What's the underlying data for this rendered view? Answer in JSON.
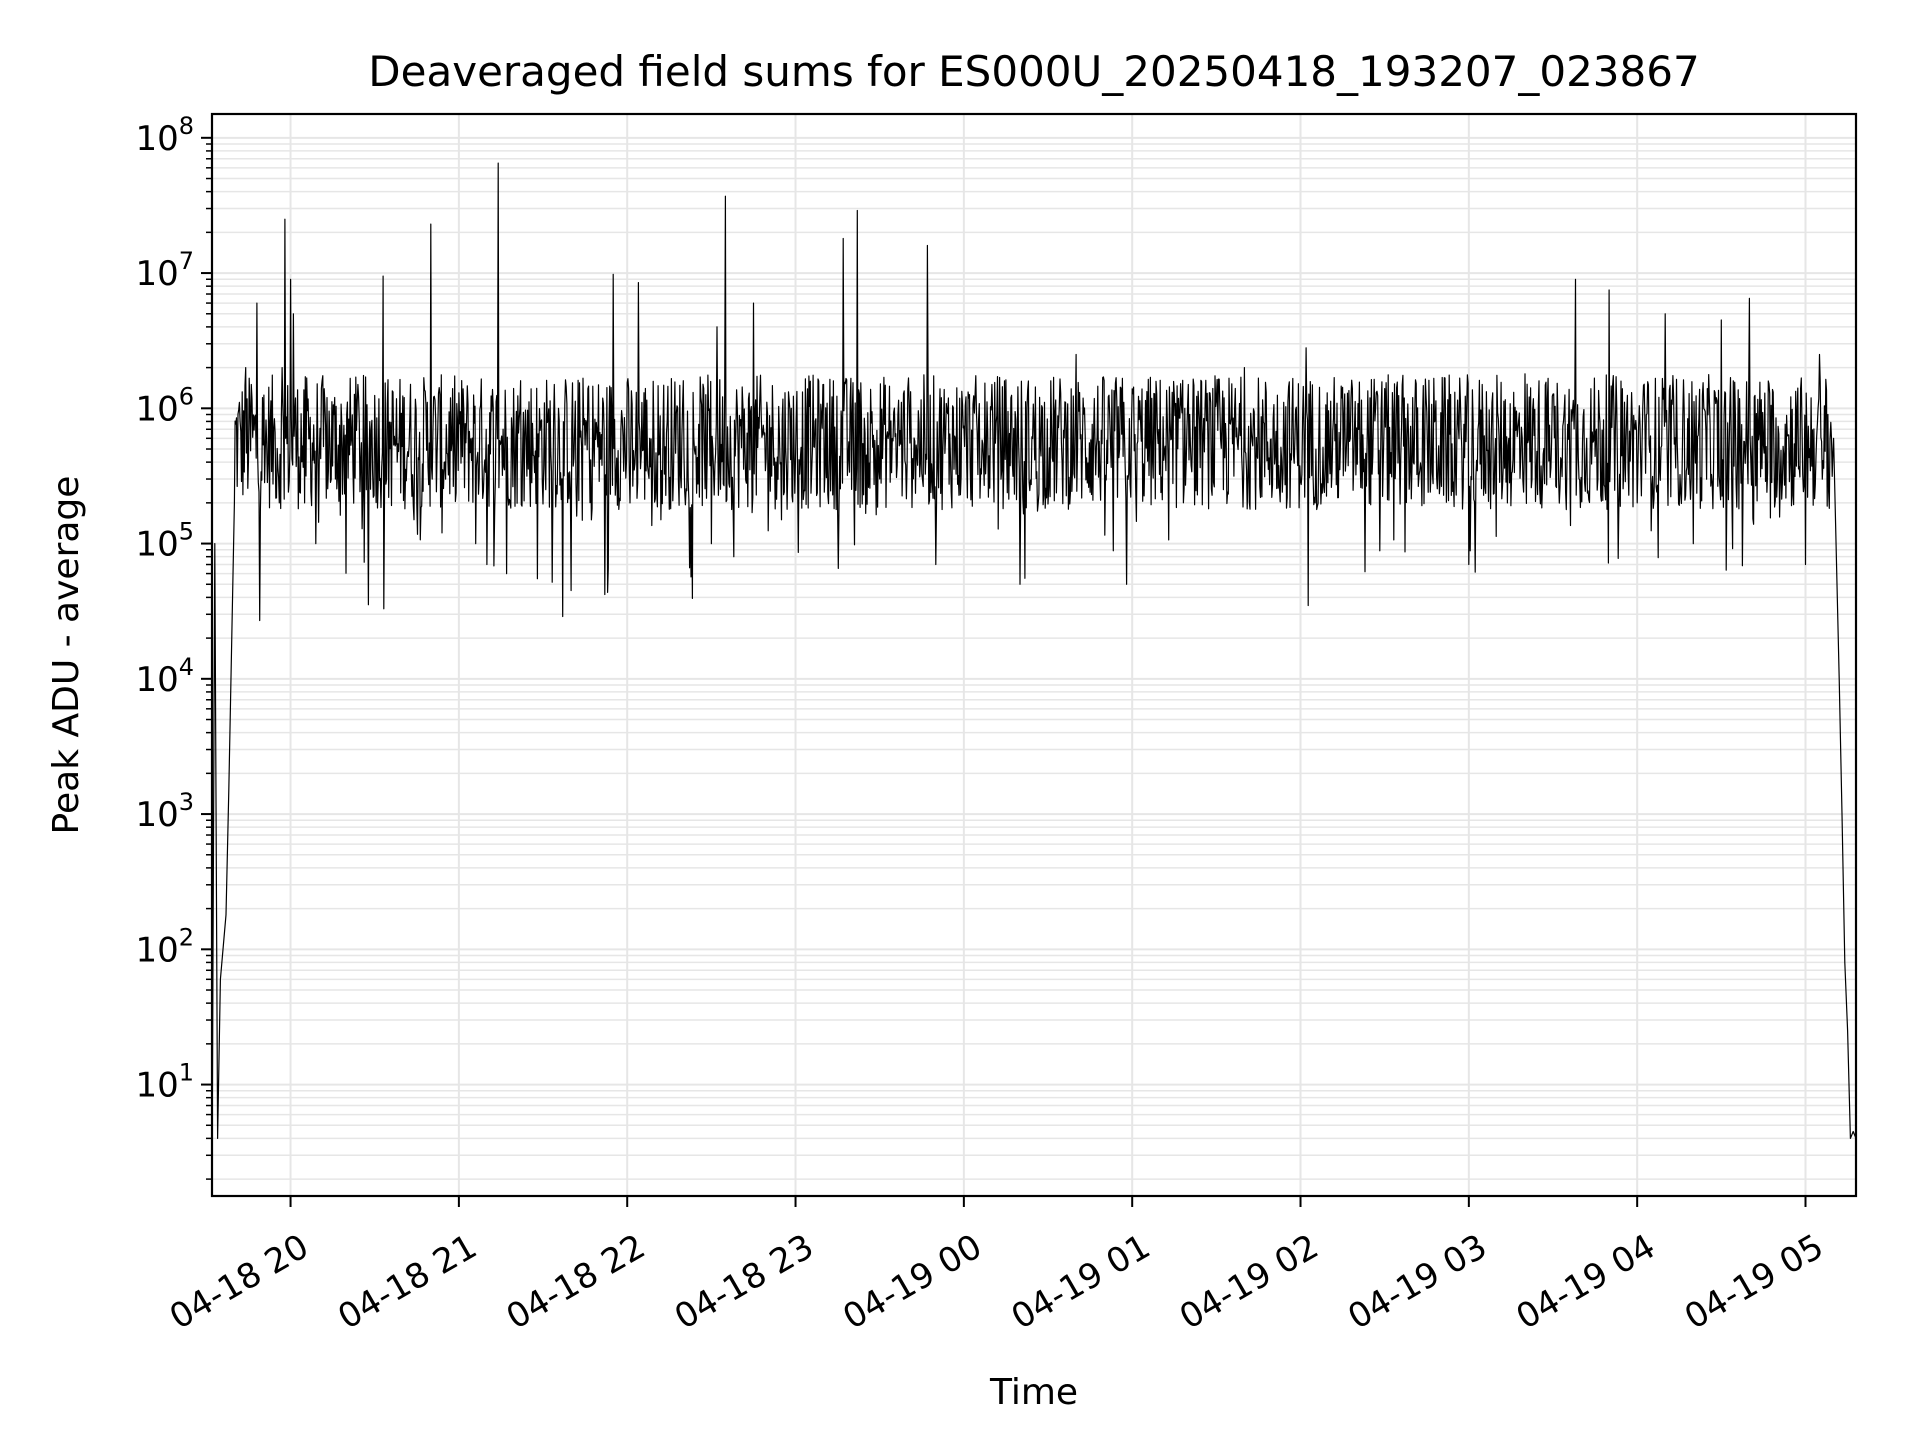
{
  "chart_data": {
    "type": "line",
    "title": "Deaveraged field sums for ES000U_20250418_193207_023867",
    "xlabel": "Time",
    "ylabel": "Peak ADU - average",
    "y_scale": "log",
    "ylim": [
      1.5,
      150000000
    ],
    "xlim": [
      "2025-04-18 19:32",
      "2025-04-19 05:18"
    ],
    "grid": true,
    "line_color": "#000000",
    "grid_color": "#e6e6e6",
    "x_ticks": [
      {
        "t": "2025-04-18 20:00",
        "label": "04-18 20"
      },
      {
        "t": "2025-04-18 21:00",
        "label": "04-18 21"
      },
      {
        "t": "2025-04-18 22:00",
        "label": "04-18 22"
      },
      {
        "t": "2025-04-18 23:00",
        "label": "04-18 23"
      },
      {
        "t": "2025-04-19 00:00",
        "label": "04-19 00"
      },
      {
        "t": "2025-04-19 01:00",
        "label": "04-19 01"
      },
      {
        "t": "2025-04-19 02:00",
        "label": "04-19 02"
      },
      {
        "t": "2025-04-19 03:00",
        "label": "04-19 03"
      },
      {
        "t": "2025-04-19 04:00",
        "label": "04-19 04"
      },
      {
        "t": "2025-04-19 05:00",
        "label": "04-19 05"
      }
    ],
    "y_ticks": [
      {
        "value": 10,
        "base": "10",
        "exp": "1"
      },
      {
        "value": 100,
        "base": "10",
        "exp": "2"
      },
      {
        "value": 1000,
        "base": "10",
        "exp": "3"
      },
      {
        "value": 10000,
        "base": "10",
        "exp": "4"
      },
      {
        "value": 100000,
        "base": "10",
        "exp": "5"
      },
      {
        "value": 1000000,
        "base": "10",
        "exp": "6"
      },
      {
        "value": 10000000,
        "base": "10",
        "exp": "7"
      },
      {
        "value": 100000000,
        "base": "10",
        "exp": "8"
      }
    ],
    "series": [
      {
        "baseline": 1000000,
        "points": [
          [
            "2025-04-18 19:32",
            1.8
          ],
          [
            "2025-04-18 19:33",
            100000
          ],
          [
            "2025-04-18 19:34",
            4
          ],
          [
            "2025-04-18 19:35",
            60
          ],
          [
            "2025-04-18 19:37",
            180
          ],
          [
            "2025-04-18 19:38",
            1500
          ],
          [
            "2025-04-18 19:40",
            200000
          ],
          [
            "2025-04-18 19:42",
            800000
          ],
          [
            "2025-04-18 19:44",
            2000000
          ],
          [
            "2025-04-18 19:46",
            1500000
          ],
          [
            "2025-04-18 19:48",
            6000000
          ],
          [
            "2025-04-18 19:49",
            27000
          ],
          [
            "2025-04-18 19:50",
            1200000
          ],
          [
            "2025-04-18 19:52",
            400000
          ],
          [
            "2025-04-18 19:54",
            700000
          ],
          [
            "2025-04-18 19:56",
            200000
          ],
          [
            "2025-04-18 19:57",
            2000000
          ],
          [
            "2025-04-18 19:58",
            25000000
          ],
          [
            "2025-04-18 20:00",
            9000000
          ],
          [
            "2025-04-18 20:01",
            5000000
          ],
          [
            "2025-04-18 20:05",
            200000
          ],
          [
            "2025-04-18 20:09",
            100000
          ],
          [
            "2025-04-18 20:13",
            1200000
          ],
          [
            "2025-04-18 20:16",
            300000
          ],
          [
            "2025-04-18 20:20",
            900000
          ],
          [
            "2025-04-18 20:24",
            1500000
          ],
          [
            "2025-04-18 20:27",
            250000
          ],
          [
            "2025-04-18 20:33",
            9500000
          ],
          [
            "2025-04-18 20:38",
            400000
          ],
          [
            "2025-04-18 20:44",
            150000
          ],
          [
            "2025-04-18 20:50",
            23000000
          ],
          [
            "2025-04-18 20:54",
            120000
          ],
          [
            "2025-04-18 21:00",
            1300000
          ],
          [
            "2025-04-18 21:06",
            100000
          ],
          [
            "2025-04-18 21:10",
            70000
          ],
          [
            "2025-04-18 21:14",
            65000000
          ],
          [
            "2025-04-18 21:17",
            60000
          ],
          [
            "2025-04-18 21:22",
            1600000
          ],
          [
            "2025-04-18 21:28",
            55000
          ],
          [
            "2025-04-18 21:34",
            1500000
          ],
          [
            "2025-04-18 21:40",
            45000
          ],
          [
            "2025-04-18 21:46",
            1400000
          ],
          [
            "2025-04-18 21:52",
            42000
          ],
          [
            "2025-04-18 21:55",
            9800000
          ],
          [
            "2025-04-18 22:01",
            200000
          ],
          [
            "2025-04-18 22:04",
            8500000
          ],
          [
            "2025-04-18 22:12",
            150000
          ],
          [
            "2025-04-18 22:20",
            1600000
          ],
          [
            "2025-04-18 22:30",
            100000
          ],
          [
            "2025-04-18 22:32",
            4000000
          ],
          [
            "2025-04-18 22:35",
            37000000
          ],
          [
            "2025-04-18 22:38",
            80000
          ],
          [
            "2025-04-18 22:45",
            6000000
          ],
          [
            "2025-04-18 22:55",
            150000
          ],
          [
            "2025-04-18 23:10",
            1500000
          ],
          [
            "2025-04-18 23:17",
            18000000
          ],
          [
            "2025-04-18 23:22",
            29000000
          ],
          [
            "2025-04-18 23:30",
            300000
          ],
          [
            "2025-04-18 23:40",
            1400000
          ],
          [
            "2025-04-18 23:47",
            16000000
          ],
          [
            "2025-04-18 23:50",
            70000
          ],
          [
            "2025-04-19 00:10",
            1500000
          ],
          [
            "2025-04-19 00:20",
            50000
          ],
          [
            "2025-04-19 00:40",
            2500000
          ],
          [
            "2025-04-19 00:58",
            50000
          ],
          [
            "2025-04-19 01:20",
            1500000
          ],
          [
            "2025-04-19 01:40",
            2000000
          ],
          [
            "2025-04-19 02:02",
            2800000
          ],
          [
            "2025-04-19 02:30",
            1400000
          ],
          [
            "2025-04-19 03:00",
            70000
          ],
          [
            "2025-04-19 03:20",
            1800000
          ],
          [
            "2025-04-19 03:38",
            9000000
          ],
          [
            "2025-04-19 03:42",
            600000
          ],
          [
            "2025-04-19 03:50",
            7500000
          ],
          [
            "2025-04-19 04:00",
            200000
          ],
          [
            "2025-04-19 04:10",
            5000000
          ],
          [
            "2025-04-19 04:20",
            100000
          ],
          [
            "2025-04-19 04:30",
            4500000
          ],
          [
            "2025-04-19 04:40",
            6500000
          ],
          [
            "2025-04-19 04:50",
            300000
          ],
          [
            "2025-04-19 05:00",
            70000
          ],
          [
            "2025-04-19 05:05",
            2500000
          ],
          [
            "2025-04-19 05:08",
            900000
          ],
          [
            "2025-04-19 05:10",
            600000
          ],
          [
            "2025-04-19 05:12",
            10000
          ],
          [
            "2025-04-19 05:13",
            1000
          ],
          [
            "2025-04-19 05:14",
            80
          ],
          [
            "2025-04-19 05:15",
            25
          ],
          [
            "2025-04-19 05:16",
            4
          ],
          [
            "2025-04-19 05:17",
            4.5
          ],
          [
            "2025-04-19 05:18",
            4
          ]
        ]
      }
    ]
  }
}
